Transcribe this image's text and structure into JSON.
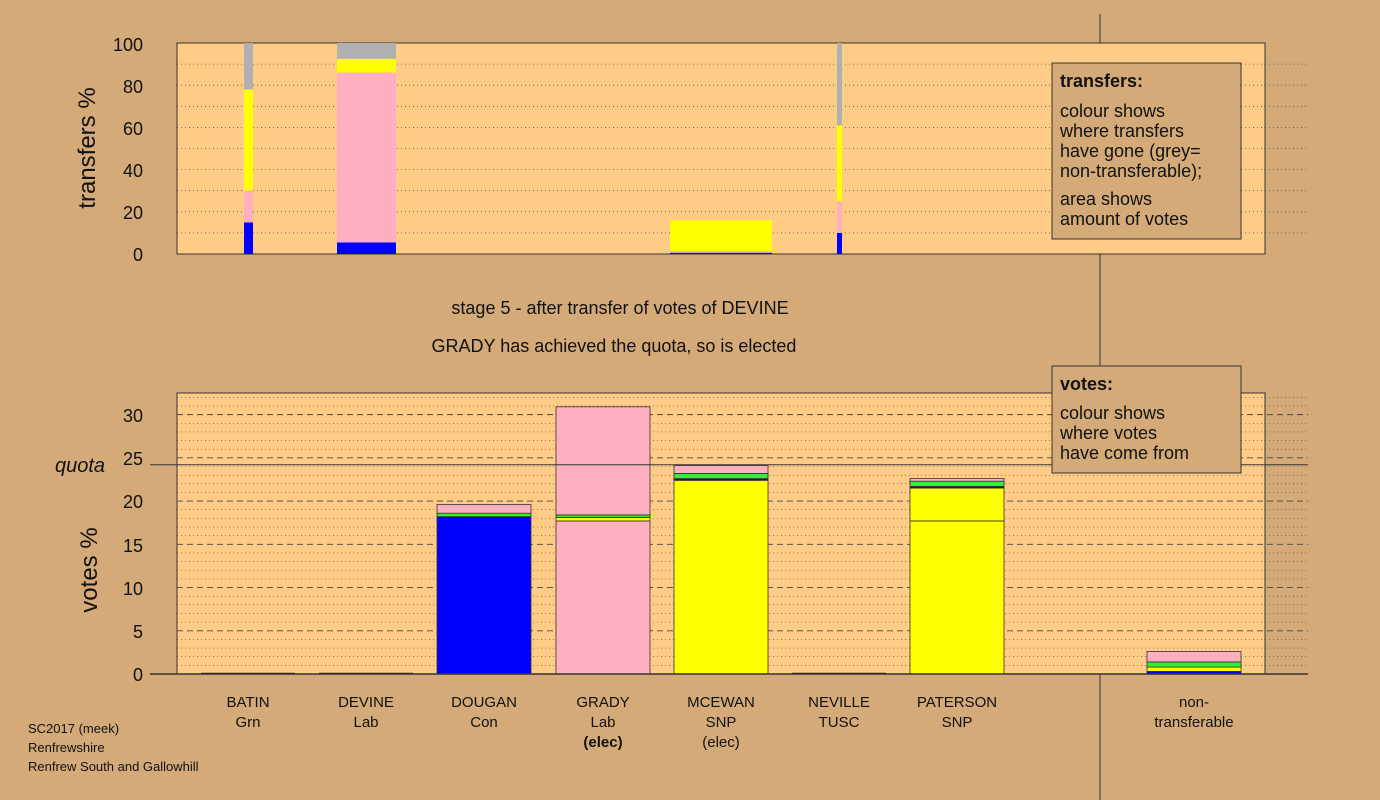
{
  "chart_data": [
    {
      "type": "bar",
      "stacked": true,
      "panel": "transfers",
      "ylabel": "transfers %",
      "ylim": [
        0,
        100
      ],
      "yticks": [
        0,
        20,
        40,
        60,
        80,
        100
      ],
      "grid": "dotted",
      "note": "bar width proportional to amount of votes transferred",
      "categories": [
        "BATIN",
        "DEVINE",
        "DOUGAN",
        "GRADY",
        "MCEWAN",
        "NEVILLE",
        "PATERSON"
      ],
      "bars": [
        {
          "category": "BATIN",
          "segments": [
            {
              "to": "Con",
              "color": "#0000ff",
              "from": 0,
              "to_value": 15
            },
            {
              "to": "Lab",
              "color": "#ffb0c0",
              "from": 15,
              "to_value": 30
            },
            {
              "to": "SNP",
              "color": "#ffff00",
              "from": 30,
              "to_value": 78
            },
            {
              "to": "non-transferable",
              "color": "#b0b0b0",
              "from": 78,
              "to_value": 100
            }
          ]
        },
        {
          "category": "DEVINE",
          "segments": [
            {
              "to": "Con",
              "color": "#0000ff",
              "from": 0,
              "to_value": 5.5
            },
            {
              "to": "Lab",
              "color": "#ffb0c0",
              "from": 5.5,
              "to_value": 86
            },
            {
              "to": "SNP",
              "color": "#ffff00",
              "from": 86,
              "to_value": 92.5
            },
            {
              "to": "non-transferable",
              "color": "#b0b0b0",
              "from": 92.5,
              "to_value": 100
            }
          ]
        },
        {
          "category": "MCEWAN",
          "segments": [
            {
              "to": "Con",
              "color": "#0000ff",
              "from": 0,
              "to_value": 0.6
            },
            {
              "to": "Lab",
              "color": "#ffb0c0",
              "from": 0.6,
              "to_value": 1.5
            },
            {
              "to": "SNP",
              "color": "#ffff00",
              "from": 1.5,
              "to_value": 16
            }
          ]
        },
        {
          "category": "NEVILLE",
          "segments": [
            {
              "to": "Con",
              "color": "#0000ff",
              "from": 0,
              "to_value": 10
            },
            {
              "to": "Lab",
              "color": "#ffb0c0",
              "from": 10,
              "to_value": 25
            },
            {
              "to": "SNP",
              "color": "#ffff00",
              "from": 25,
              "to_value": 61
            },
            {
              "to": "non-transferable",
              "color": "#b0b0b0",
              "from": 61,
              "to_value": 100
            }
          ]
        }
      ]
    },
    {
      "type": "bar",
      "stacked": true,
      "panel": "votes",
      "ylabel": "votes %",
      "ylim": [
        0,
        32.5
      ],
      "yticks": [
        0,
        5,
        10,
        15,
        20,
        25,
        30
      ],
      "quota": 24.2,
      "grid": "dashed",
      "categories": [
        "BATIN",
        "DEVINE",
        "DOUGAN",
        "GRADY",
        "MCEWAN",
        "NEVILLE",
        "PATERSON",
        "non-transferable"
      ],
      "bars": [
        {
          "category": "BATIN",
          "segments": []
        },
        {
          "category": "DEVINE",
          "segments": []
        },
        {
          "category": "DOUGAN",
          "segments": [
            {
              "from": "Con",
              "color": "#0000ff",
              "value": 18.2
            },
            {
              "from": "Grn",
              "color": "#33ee33",
              "value": 0.4
            },
            {
              "from": "Lab",
              "color": "#ffb0c0",
              "value": 1.0
            }
          ]
        },
        {
          "category": "GRADY",
          "segments": [
            {
              "from": "Lab",
              "color": "#ffb0c0",
              "value": 17.7
            },
            {
              "from": "SNP",
              "color": "#ffff00",
              "value": 0.4
            },
            {
              "from": "Grn",
              "color": "#33ee33",
              "value": 0.3
            },
            {
              "from": "Lab",
              "color": "#ffb0c0",
              "value": 12.5
            }
          ]
        },
        {
          "category": "MCEWAN",
          "segments": [
            {
              "from": "SNP",
              "color": "#ffff00",
              "value": 22.4
            },
            {
              "from": "Con",
              "color": "#0000ff",
              "value": 0.2
            },
            {
              "from": "Grn",
              "color": "#33ee33",
              "value": 0.6
            },
            {
              "from": "Lab",
              "color": "#ffb0c0",
              "value": 0.9
            }
          ]
        },
        {
          "category": "NEVILLE",
          "segments": []
        },
        {
          "category": "PATERSON",
          "segments": [
            {
              "from": "SNP",
              "color": "#ffff00",
              "value": 17.7
            },
            {
              "from": "SNP",
              "color": "#ffff00",
              "value": 3.8
            },
            {
              "from": "Con",
              "color": "#0000ff",
              "value": 0.2
            },
            {
              "from": "Grn",
              "color": "#33ee33",
              "value": 0.6
            },
            {
              "from": "Lab",
              "color": "#ffb0c0",
              "value": 0.3
            }
          ]
        },
        {
          "category": "non-transferable",
          "segments": [
            {
              "from": "Con",
              "color": "#0000ff",
              "value": 0.3
            },
            {
              "from": "SNP",
              "color": "#ffff00",
              "value": 0.5
            },
            {
              "from": "Grn",
              "color": "#33ee33",
              "value": 0.6
            },
            {
              "from": "Lab",
              "color": "#ffb0c0",
              "value": 1.2
            }
          ]
        }
      ]
    }
  ],
  "top_panel": {
    "ylabel": "transfers %",
    "tick_labels": [
      "0",
      "20",
      "40",
      "60",
      "80",
      "100"
    ]
  },
  "bottom_panel": {
    "ylabel": "votes %",
    "quota_label": "quota",
    "tick_labels": [
      "0",
      "5",
      "10",
      "15",
      "20",
      "25",
      "30"
    ]
  },
  "captions": {
    "stage": "stage 5 - after transfer of votes of DEVINE",
    "elected": "GRADY has achieved the quota, so is elected"
  },
  "legend_transfers": {
    "title": "transfers:",
    "lines1": [
      "colour shows",
      "where transfers",
      "have gone (grey=",
      "non-transferable);"
    ],
    "lines2": [
      "area shows",
      "amount of votes"
    ]
  },
  "legend_votes": {
    "title": "votes:",
    "lines": [
      "colour shows",
      "where votes",
      "have come from"
    ]
  },
  "candidates": [
    {
      "name": "BATIN",
      "party": "Grn",
      "status": ""
    },
    {
      "name": "DEVINE",
      "party": "Lab",
      "status": ""
    },
    {
      "name": "DOUGAN",
      "party": "Con",
      "status": ""
    },
    {
      "name": "GRADY",
      "party": "Lab",
      "status": "(elec)",
      "status_bold": true
    },
    {
      "name": "MCEWAN",
      "party": "SNP",
      "status": "(elec)",
      "status_bold": false
    },
    {
      "name": "NEVILLE",
      "party": "TUSC",
      "status": ""
    },
    {
      "name": "PATERSON",
      "party": "SNP",
      "status": ""
    },
    {
      "name": "non-",
      "party": "transferable",
      "status": ""
    }
  ],
  "footer": {
    "line1": "SC2017 (meek)",
    "line2": "Renfrewshire",
    "line3": "Renfrew South and Gallowhill"
  },
  "colors": {
    "background": "#d4aa78",
    "plot_background": "#ffcc88",
    "legend_background": "#d4aa78",
    "con": "#0000ff",
    "lab": "#ffb0c0",
    "snp": "#ffff00",
    "grn": "#33ee33",
    "nontransferable": "#b0b0b0"
  }
}
